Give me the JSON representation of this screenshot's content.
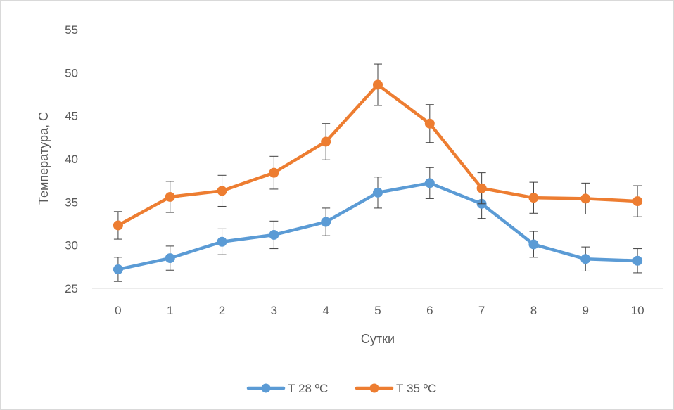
{
  "chart_data": {
    "type": "line",
    "title": "",
    "xlabel": "Сутки",
    "ylabel": "Температура, С",
    "x": [
      0,
      1,
      2,
      3,
      4,
      5,
      6,
      7,
      8,
      9,
      10
    ],
    "ylim": [
      25,
      55
    ],
    "yticks": [
      25,
      30,
      35,
      40,
      45,
      50,
      55
    ],
    "grid": false,
    "legend": "bottom",
    "error_bars": true,
    "series": [
      {
        "name": "Т 28 ºС",
        "color": "#5b9bd5",
        "values": [
          27.2,
          28.5,
          30.4,
          31.2,
          32.7,
          36.1,
          37.2,
          34.8,
          30.1,
          28.4,
          28.2
        ],
        "error": [
          1.4,
          1.4,
          1.5,
          1.6,
          1.6,
          1.8,
          1.8,
          1.7,
          1.5,
          1.4,
          1.4
        ]
      },
      {
        "name": "Т 35 ºС",
        "color": "#ed7d31",
        "values": [
          32.3,
          35.6,
          36.3,
          38.4,
          42.0,
          48.6,
          44.1,
          36.6,
          35.5,
          35.4,
          35.1
        ],
        "error": [
          1.6,
          1.8,
          1.8,
          1.9,
          2.1,
          2.4,
          2.2,
          1.8,
          1.8,
          1.8,
          1.8
        ]
      }
    ]
  }
}
